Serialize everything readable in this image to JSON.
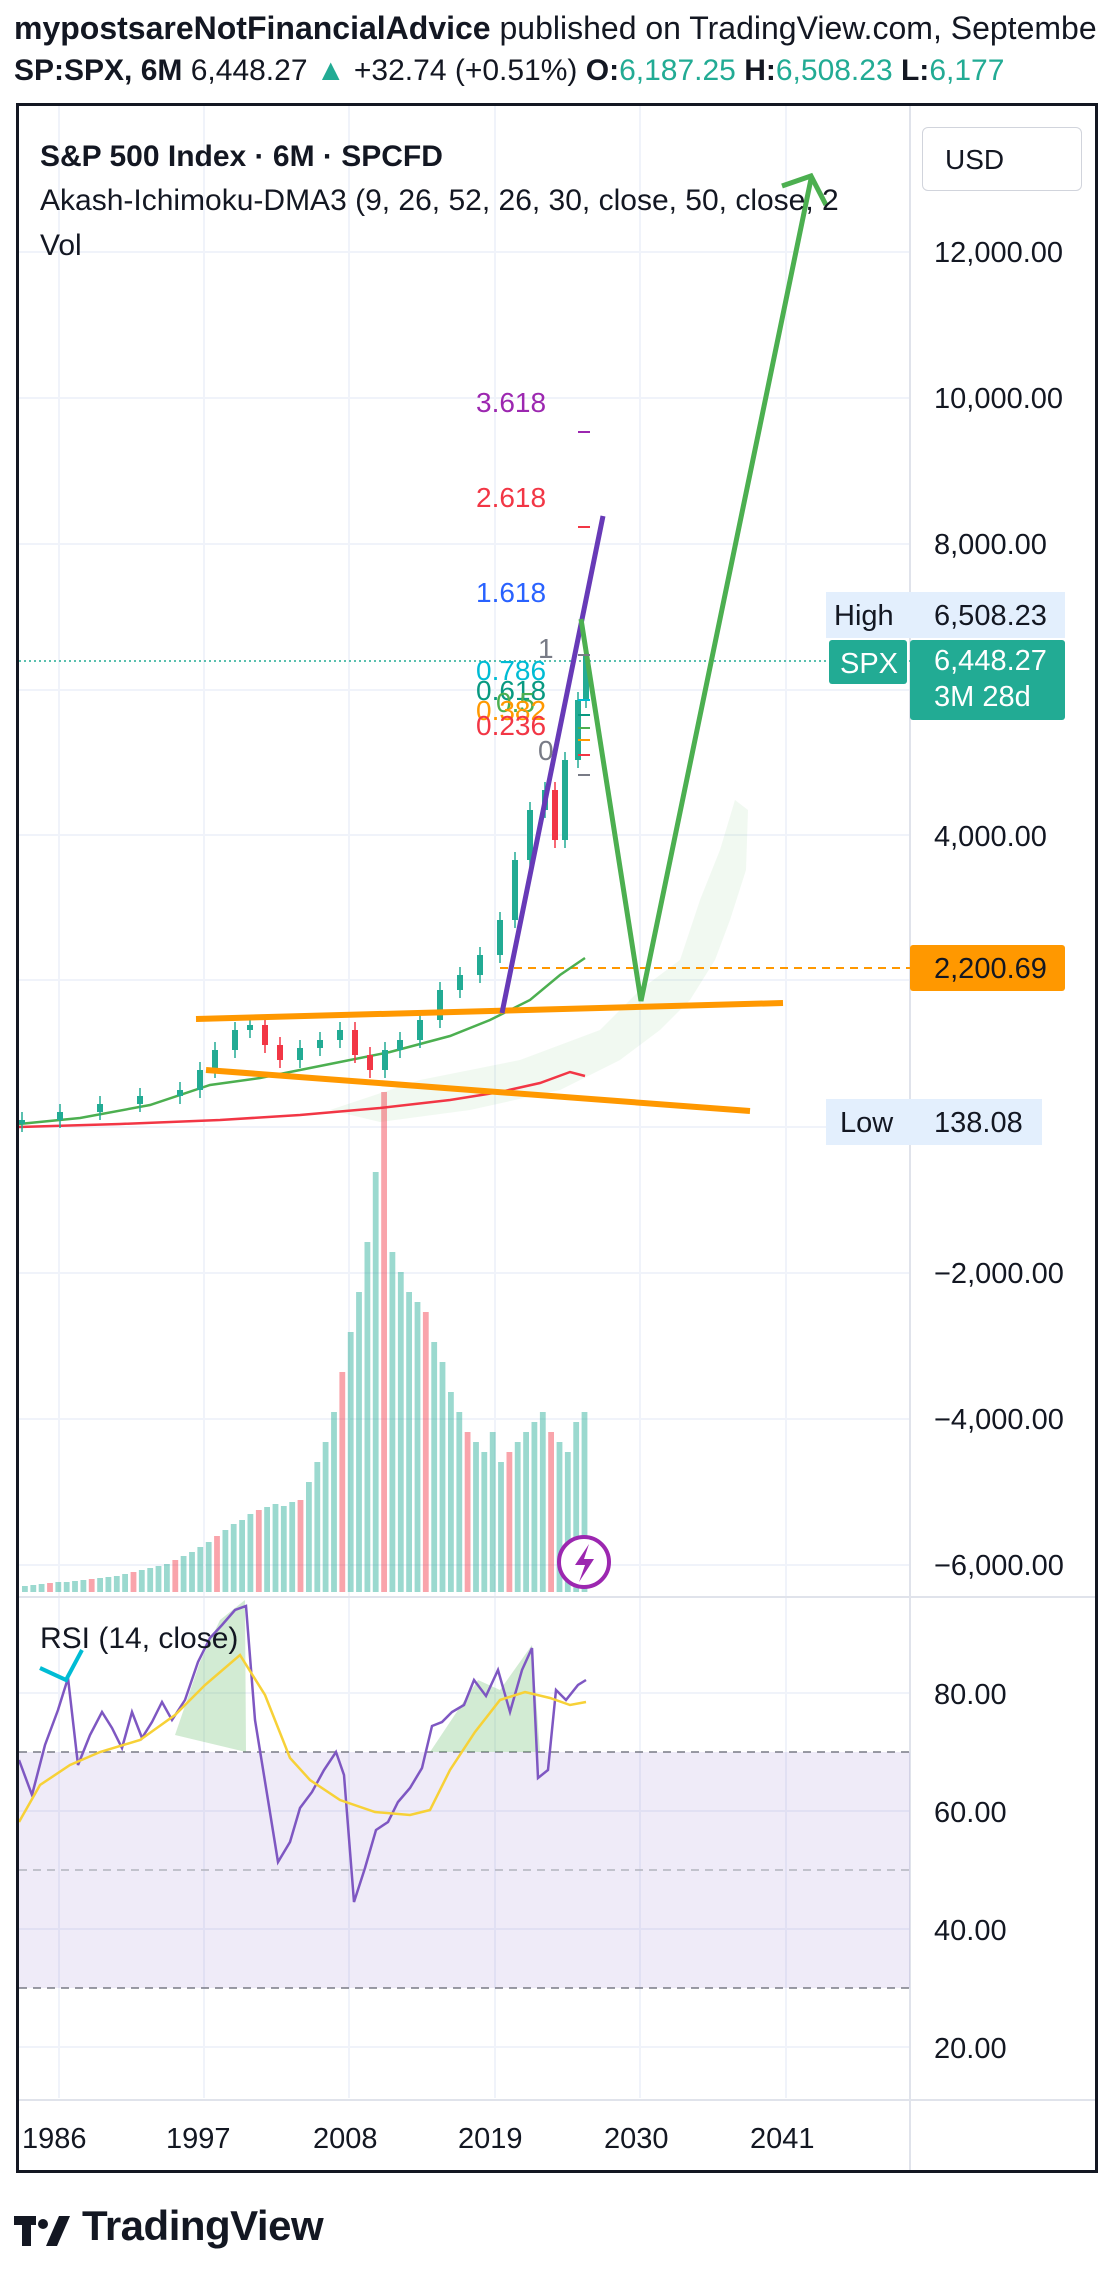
{
  "header": {
    "author": "mypostsareNotFinancialAdvice",
    "published": "published on TradingView.com, Septembe",
    "symbol": "SP:SPX, 6M",
    "price": "6,448.27",
    "change": "+32.74 (+0.51%)",
    "o_label": "O:",
    "o_value": "6,187.25",
    "h_label": "H:",
    "h_value": "6,508.23",
    "l_label": "L:",
    "l_value": "6,177"
  },
  "legend": {
    "title": "S&P 500 Index · 6M · SPCFD",
    "indicator": "Akash-Ichimoku-DMA3 (9, 26, 52, 26, 30, close, 50, close, 2",
    "vol": "Vol",
    "rsi": "RSI (14, close)"
  },
  "currency": "USD",
  "price_axis": {
    "ticks": [
      "12,000.00",
      "10,000.00",
      "8,000.00",
      "4,000.00",
      "−2,000.00",
      "−4,000.00",
      "−6,000.00"
    ],
    "high_label": "High",
    "high_value": "6,508.23",
    "spx_label": "SPX",
    "spx_value": "6,448.27",
    "spx_countdown": "3M 28d",
    "support_value": "2,200.69",
    "low_label": "Low",
    "low_value": "138.08"
  },
  "rsi_axis": {
    "ticks": [
      "80.00",
      "60.00",
      "40.00",
      "20.00"
    ]
  },
  "time_axis": {
    "ticks": [
      "1986",
      "1997",
      "2008",
      "2019",
      "2030",
      "2041"
    ]
  },
  "fib_levels": [
    {
      "label": "3.618",
      "color": "#9c27b0"
    },
    {
      "label": "2.618",
      "color": "#f23645"
    },
    {
      "label": "1.618",
      "color": "#2962ff"
    },
    {
      "label": "1",
      "color": "#787b86"
    },
    {
      "label": "0.786",
      "color": "#00bcd4"
    },
    {
      "label": "0.618",
      "color": "#089981"
    },
    {
      "label": "0.5",
      "color": "#4caf50"
    },
    {
      "label": "0.382",
      "color": "#ff9800"
    },
    {
      "label": "0.236",
      "color": "#f23645"
    },
    {
      "label": "0",
      "color": "#787b86"
    }
  ],
  "colors": {
    "up": "#22ab94",
    "down": "#f23645",
    "orange": "#ff9800",
    "green": "#4caf50",
    "purple": "#673ab7",
    "rsi": "#7e57c2"
  },
  "brand": "TradingView",
  "chart_data": {
    "type": "candlestick",
    "title": "S&P 500 Index · 6M · SPCFD",
    "x": [
      "1986",
      "1997",
      "2008",
      "2019",
      "2030",
      "2041"
    ],
    "series": [
      {
        "name": "SPX",
        "last": 6448.27,
        "high": 6508.23,
        "low": 138.08
      },
      {
        "name": "RSI (14, close)",
        "levels": [
          70,
          50,
          30
        ]
      }
    ],
    "annotations": [
      "support 2,200.69"
    ]
  }
}
